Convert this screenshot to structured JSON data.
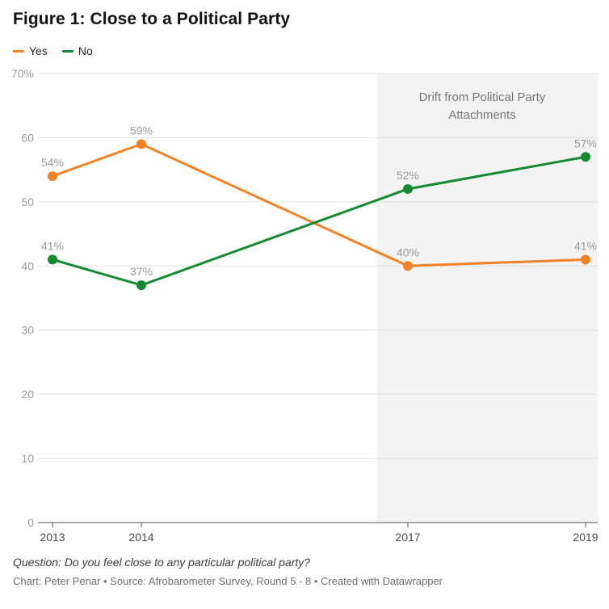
{
  "title": "Figure 1: Close to a Political Party",
  "chart_data": {
    "type": "line",
    "x": [
      2013,
      2014,
      2017,
      2019
    ],
    "x_ticks": [
      "2013",
      "2014",
      "2017",
      "2019"
    ],
    "series": [
      {
        "name": "Yes",
        "color": "#f18226",
        "values": [
          54,
          59,
          40,
          41
        ]
      },
      {
        "name": "No",
        "color": "#168a31",
        "values": [
          41,
          37,
          52,
          57
        ]
      }
    ],
    "ylim": [
      0,
      70
    ],
    "y_tick_step": 10,
    "y_top_label": "70%",
    "data_label_suffix": "%",
    "grid": true,
    "legend_position": "top-left",
    "highlight_region": {
      "x_from": 2016.65,
      "x_to": 2019.2,
      "label": "Drift from Political Party Attachments",
      "fill": "#f3f3f3"
    }
  },
  "footer": {
    "question": "Question: Do you feel close to any particular political party?",
    "credits": "Chart: Peter Penar • Source: Afrobarometer Survey, Round 5 - 8 • Created with Datawrapper"
  }
}
